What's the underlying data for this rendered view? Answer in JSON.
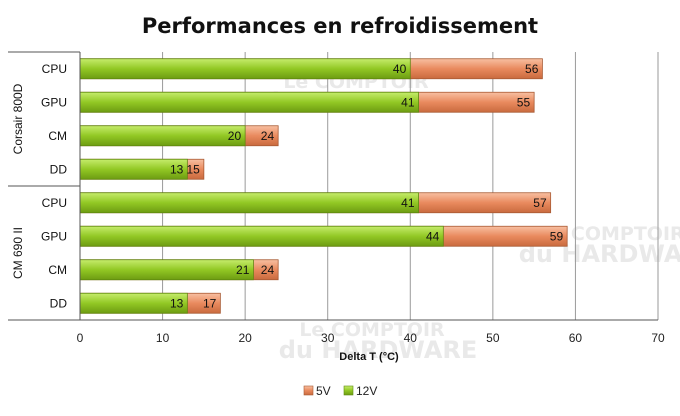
{
  "chart_data": {
    "type": "bar",
    "orientation": "horizontal",
    "stacked": false,
    "title": "Performances en refroidissement",
    "xlabel": "Delta T (°C)",
    "xlim": [
      0,
      70
    ],
    "xticks": [
      0,
      10,
      20,
      30,
      40,
      50,
      60,
      70
    ],
    "grid": true,
    "legend_position": "bottom",
    "groups": [
      {
        "name": "Corsair 800D",
        "categories": [
          "CPU",
          "GPU",
          "CM",
          "DD"
        ]
      },
      {
        "name": "CM 690 II",
        "categories": [
          "CPU",
          "GPU",
          "CM",
          "DD"
        ]
      }
    ],
    "series": [
      {
        "name": "5V",
        "color": "#e8875c",
        "values": [
          56,
          55,
          24,
          15,
          57,
          59,
          24,
          17
        ]
      },
      {
        "name": "12V",
        "color": "#8cc21f",
        "values": [
          40,
          41,
          20,
          13,
          41,
          44,
          21,
          13
        ]
      }
    ],
    "watermark": [
      "Le COMPTOIR",
      "du HARDWARE"
    ]
  }
}
